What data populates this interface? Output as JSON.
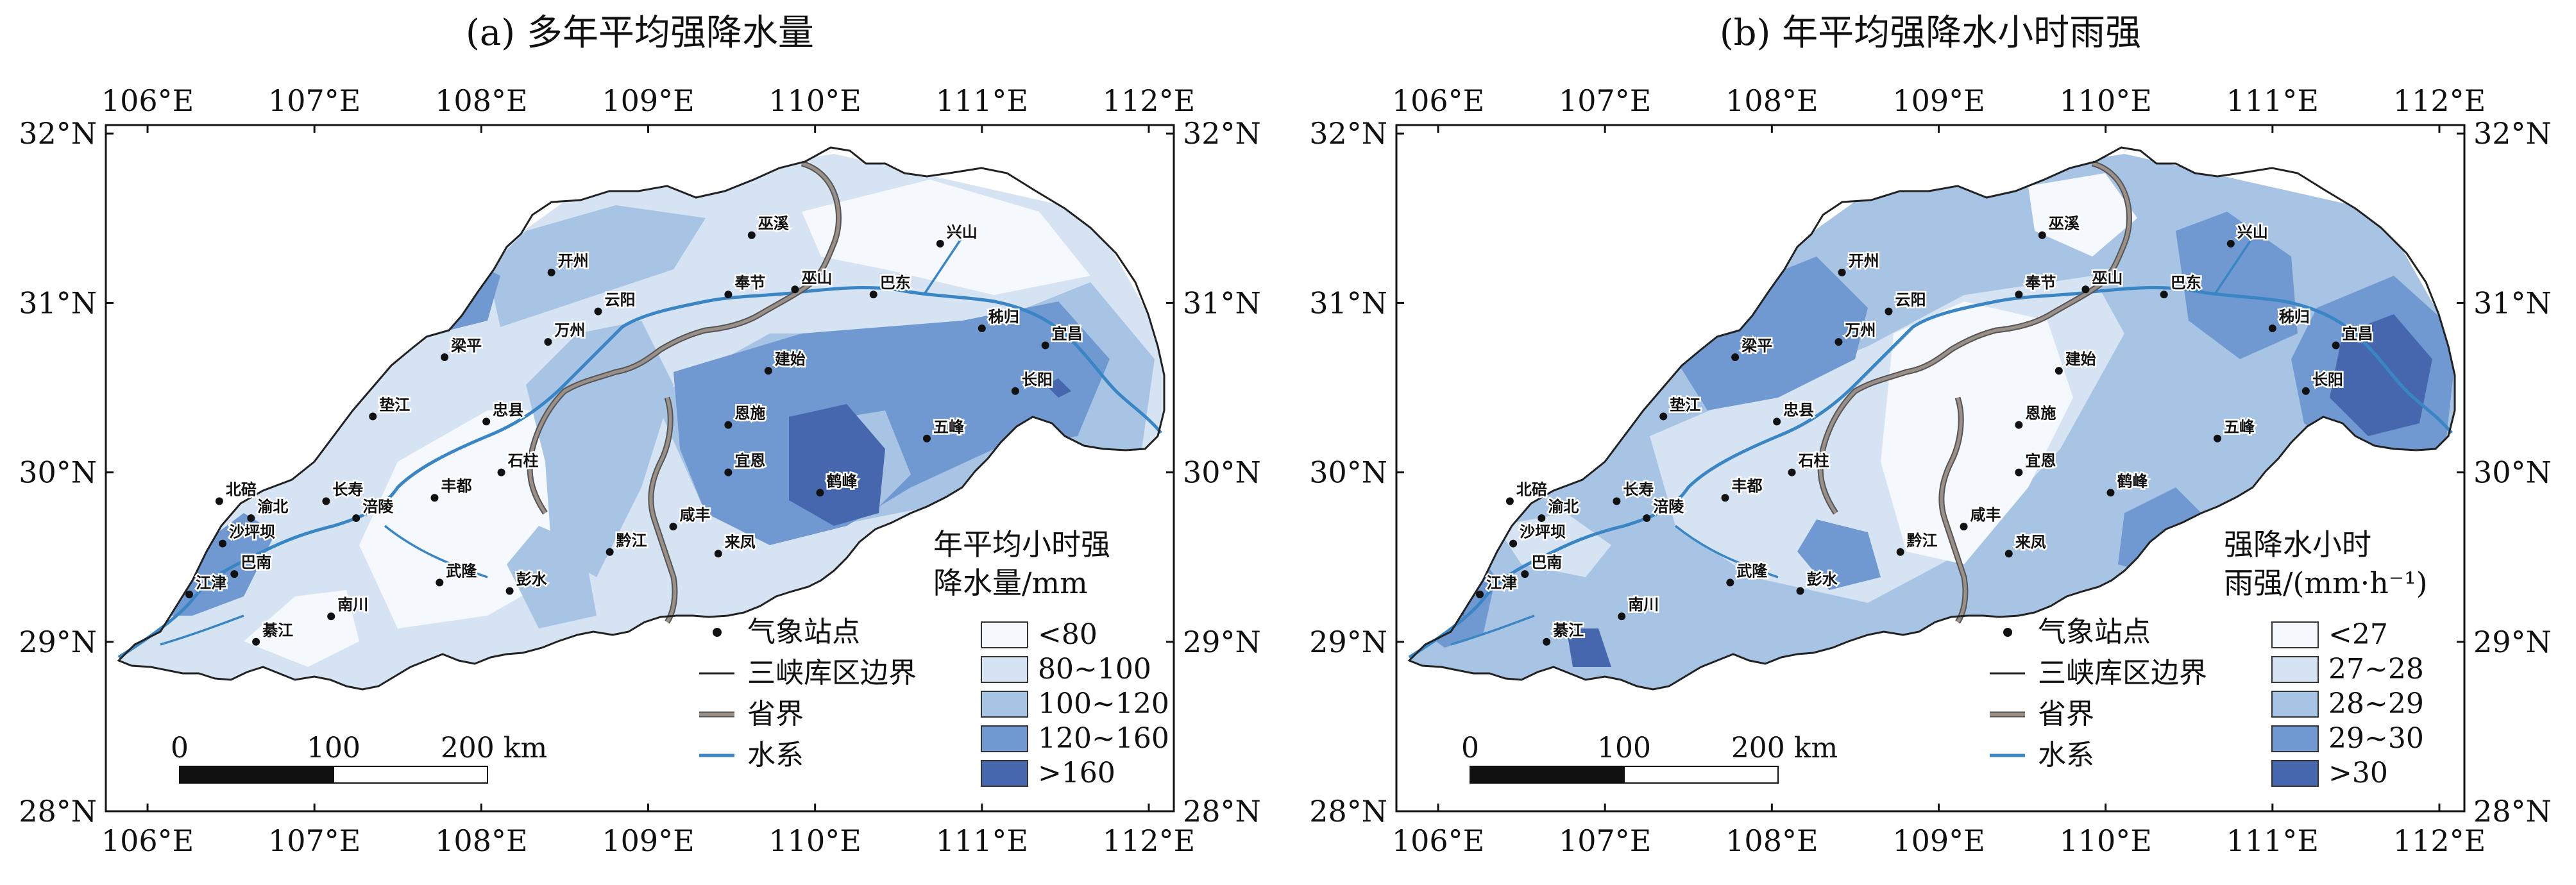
{
  "palette": {
    "c0": "#f5f8fd",
    "c1": "#d5e3f3",
    "c2": "#a8c4e4",
    "c3": "#6f99d0",
    "c4": "#4667ad",
    "river": "#3a86c4",
    "province": "#9a9088",
    "boundary": "#222222"
  },
  "axes": {
    "lon_min": 105.75,
    "lon_max": 112.15,
    "lat_min": 28.0,
    "lat_max": 32.05,
    "lon_ticks": [
      106,
      107,
      108,
      109,
      110,
      111,
      112
    ],
    "lat_ticks": [
      28,
      29,
      30,
      31,
      32
    ],
    "lon_labels": [
      "106°E",
      "107°E",
      "108°E",
      "109°E",
      "110°E",
      "111°E",
      "112°E"
    ],
    "lat_labels": [
      "28°N",
      "29°N",
      "30°N",
      "31°N",
      "32°N"
    ]
  },
  "stations": [
    {
      "name": "开州",
      "lon": 108.42,
      "lat": 31.18
    },
    {
      "name": "巫溪",
      "lon": 109.62,
      "lat": 31.4
    },
    {
      "name": "兴山",
      "lon": 110.75,
      "lat": 31.35
    },
    {
      "name": "云阳",
      "lon": 108.7,
      "lat": 30.95
    },
    {
      "name": "奉节",
      "lon": 109.48,
      "lat": 31.05
    },
    {
      "name": "巫山",
      "lon": 109.88,
      "lat": 31.08
    },
    {
      "name": "巴东",
      "lon": 110.35,
      "lat": 31.05
    },
    {
      "name": "秭归",
      "lon": 111.0,
      "lat": 30.85
    },
    {
      "name": "宜昌",
      "lon": 111.38,
      "lat": 30.75
    },
    {
      "name": "梁平",
      "lon": 107.78,
      "lat": 30.68
    },
    {
      "name": "万州",
      "lon": 108.4,
      "lat": 30.77
    },
    {
      "name": "建始",
      "lon": 109.72,
      "lat": 30.6
    },
    {
      "name": "长阳",
      "lon": 111.2,
      "lat": 30.48
    },
    {
      "name": "垫江",
      "lon": 107.35,
      "lat": 30.33
    },
    {
      "name": "忠县",
      "lon": 108.03,
      "lat": 30.3
    },
    {
      "name": "恩施",
      "lon": 109.48,
      "lat": 30.28
    },
    {
      "name": "五峰",
      "lon": 110.67,
      "lat": 30.2
    },
    {
      "name": "石柱",
      "lon": 108.12,
      "lat": 30.0
    },
    {
      "name": "宜恩",
      "lon": 109.48,
      "lat": 30.0
    },
    {
      "name": "鹤峰",
      "lon": 110.03,
      "lat": 29.88
    },
    {
      "name": "北碚",
      "lon": 106.43,
      "lat": 29.83
    },
    {
      "name": "长寿",
      "lon": 107.07,
      "lat": 29.83
    },
    {
      "name": "丰都",
      "lon": 107.72,
      "lat": 29.85
    },
    {
      "name": "渝北",
      "lon": 106.62,
      "lat": 29.73
    },
    {
      "name": "涪陵",
      "lon": 107.25,
      "lat": 29.73
    },
    {
      "name": "咸丰",
      "lon": 109.15,
      "lat": 29.68
    },
    {
      "name": "沙坪坝",
      "lon": 106.45,
      "lat": 29.58
    },
    {
      "name": "黔江",
      "lon": 108.77,
      "lat": 29.53
    },
    {
      "name": "来凤",
      "lon": 109.42,
      "lat": 29.52
    },
    {
      "name": "武隆",
      "lon": 107.75,
      "lat": 29.35
    },
    {
      "name": "巴南",
      "lon": 106.52,
      "lat": 29.4
    },
    {
      "name": "彭水",
      "lon": 108.17,
      "lat": 29.3
    },
    {
      "name": "江津",
      "lon": 106.25,
      "lat": 29.28
    },
    {
      "name": "南川",
      "lon": 107.1,
      "lat": 29.15
    },
    {
      "name": "綦江",
      "lon": 106.65,
      "lat": 29.0
    }
  ],
  "common_legend": {
    "station": "气象站点",
    "boundary": "三峡库区边界",
    "province": "省界",
    "river": "水系"
  },
  "scalebar": {
    "labels": [
      "0",
      "100",
      "200 km"
    ]
  },
  "panels": [
    {
      "title": "(a) 多年平均强降水量",
      "legend_title": [
        "年平均小时强",
        "降水量/mm"
      ],
      "classes": [
        "<80",
        "80~100",
        "100~120",
        "120~160",
        ">160"
      ]
    },
    {
      "title": "(b) 年平均强降水小时雨强",
      "legend_title": [
        "强降水小时",
        "雨强/(mm·h⁻¹)"
      ],
      "classes": [
        "<27",
        "27~28",
        "28~29",
        "29~30",
        ">30"
      ]
    }
  ]
}
